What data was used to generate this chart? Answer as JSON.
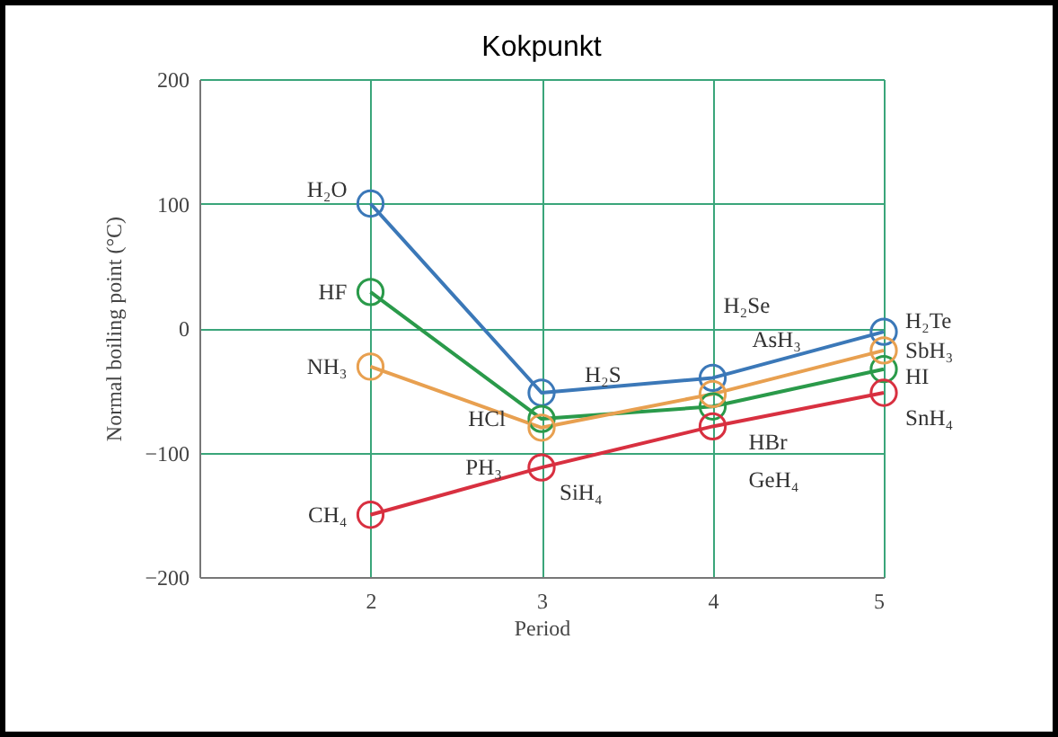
{
  "chart_data": {
    "type": "line",
    "title": "Kokpunkt",
    "xlabel": "Period",
    "ylabel": "Normal boiling point (°C)",
    "x": [
      2,
      3,
      4,
      5
    ],
    "series": [
      {
        "color": "#3b78b8",
        "values": [
          100,
          -52,
          -40,
          -3
        ]
      },
      {
        "color": "#2a9a4a",
        "values": [
          29,
          -73,
          -63,
          -33
        ]
      },
      {
        "color": "#e8a050",
        "values": [
          -31,
          -80,
          -53,
          -18
        ]
      },
      {
        "color": "#d83040",
        "values": [
          -150,
          -112,
          -79,
          -52
        ]
      }
    ],
    "xlim": [
      1,
      5
    ],
    "xticks": [
      2,
      3,
      4,
      5
    ],
    "ylim": [
      -200,
      200
    ],
    "yticks": [
      -200,
      -100,
      0,
      100,
      200
    ],
    "grid": true,
    "legend": false,
    "marker": "circle",
    "line_style": "solid",
    "annotations": [
      {
        "text": "H₂O",
        "x": 2,
        "y": 100
      },
      {
        "text": "HF",
        "x": 2,
        "y": 29
      },
      {
        "text": "NH₃",
        "x": 2,
        "y": -31
      },
      {
        "text": "CH₄",
        "x": 2,
        "y": -150
      },
      {
        "text": "H₂S",
        "x": 3,
        "y": -52
      },
      {
        "text": "HCl",
        "x": 3,
        "y": -73
      },
      {
        "text": "PH₃",
        "x": 3,
        "y": -80
      },
      {
        "text": "SiH₄",
        "x": 3,
        "y": -112
      },
      {
        "text": "H₂Se",
        "x": 4,
        "y": -40
      },
      {
        "text": "AsH₃",
        "x": 4,
        "y": -53
      },
      {
        "text": "HBr",
        "x": 4,
        "y": -63
      },
      {
        "text": "GeH₄",
        "x": 4,
        "y": -79
      },
      {
        "text": "H₂Te",
        "x": 5,
        "y": -3
      },
      {
        "text": "SbH₃",
        "x": 5,
        "y": -18
      },
      {
        "text": "HI",
        "x": 5,
        "y": -33
      },
      {
        "text": "SnH₄",
        "x": 5,
        "y": -52
      }
    ]
  }
}
